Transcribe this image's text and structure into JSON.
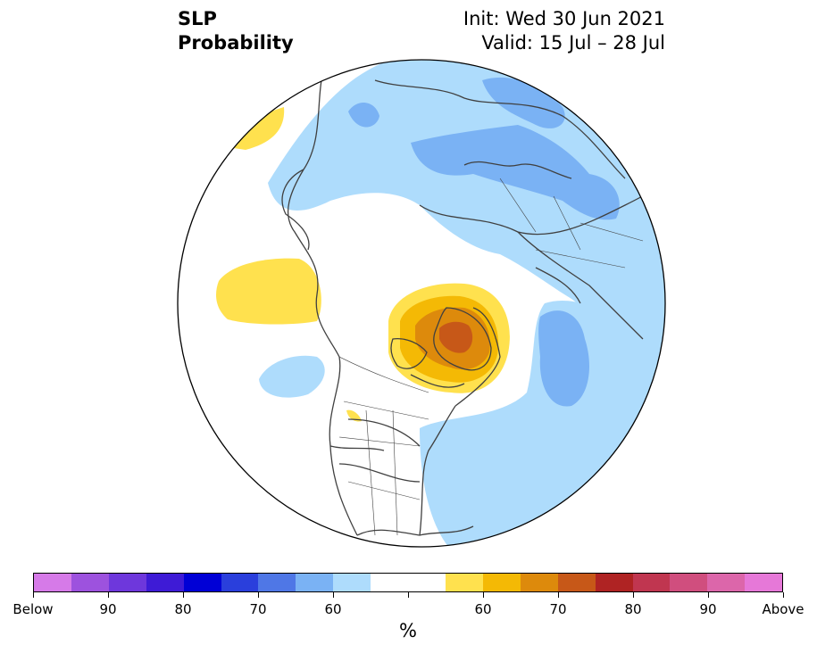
{
  "title": {
    "line1": "SLP",
    "line2": "Probability"
  },
  "subtitle": {
    "init": "Init: Wed 30 Jun 2021",
    "valid": "Valid: 15 Jul – 28 Jul"
  },
  "map": {
    "projection": "north-polar-stereographic",
    "region": "Northern Hemisphere",
    "land_outline_color": "#404040",
    "anomalies": [
      {
        "name": "greenland-high",
        "category": "above",
        "levels": [
          50,
          60,
          70,
          80
        ]
      },
      {
        "name": "north-pacific-high",
        "category": "above",
        "levels": [
          50
        ]
      },
      {
        "name": "eurasia-low",
        "category": "below",
        "levels": [
          50,
          60
        ]
      },
      {
        "name": "north-atlantic-low",
        "category": "below",
        "levels": [
          50,
          60
        ]
      },
      {
        "name": "west-pacific-low",
        "category": "below",
        "levels": [
          50
        ]
      }
    ]
  },
  "colorbar": {
    "colors": [
      "#d67ae8",
      "#9d52de",
      "#6e37dc",
      "#3e1bd6",
      "#0000d6",
      "#2a3fdc",
      "#4f77e6",
      "#7ab2f4",
      "#aedcfc",
      "#ffffff",
      "#ffffff",
      "#ffe14e",
      "#f4b905",
      "#dd8a0c",
      "#c75818",
      "#af2323",
      "#c03650",
      "#d04e7e",
      "#dc66aa",
      "#e678d8"
    ],
    "tick_labels": [
      "Below",
      "90",
      "80",
      "70",
      "60",
      "",
      "60",
      "70",
      "80",
      "90",
      "Above"
    ],
    "unit": "%"
  },
  "colors": {
    "above_50": "#ffe14e",
    "above_60": "#f4b905",
    "above_70": "#dd8a0c",
    "above_80": "#c75818",
    "below_50": "#aedcfc",
    "below_60": "#7ab2f4",
    "below_70": "#4f77e6"
  }
}
